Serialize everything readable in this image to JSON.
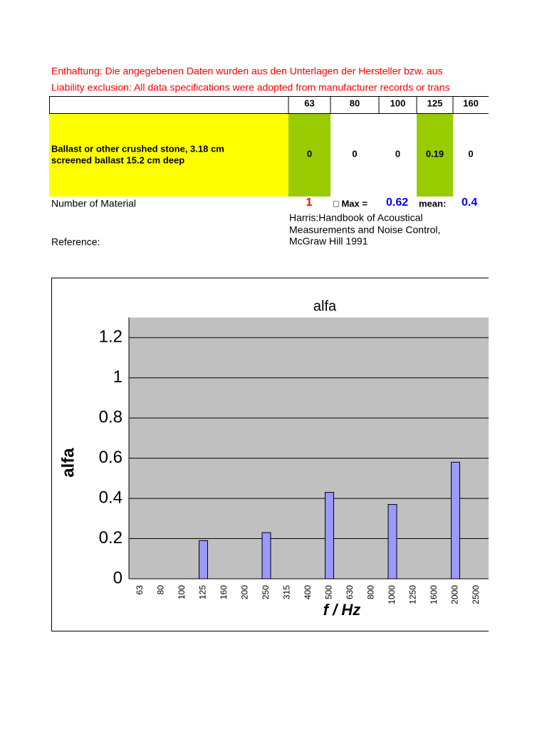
{
  "header": {
    "line_de": "Enthaftung: Die angegebenen Daten wurden aus den Unterlagen der Hersteller bzw. aus",
    "line_en": "Liability exclusion: All data specifications were adopted from manufacturer records or trans"
  },
  "table": {
    "columns": [
      "63",
      "80",
      "100",
      "125",
      "160"
    ],
    "row_label_1": "Ballast or other crushed stone, 3.18 cm",
    "row_label_2": "screened ballast 15.2 cm deep",
    "row_values": [
      "0",
      "0",
      "0",
      "0.19",
      "0"
    ]
  },
  "info": {
    "number_label": "Number of Material",
    "number": "1",
    "max_label": "□ Max =",
    "max": "0.62",
    "mean_label": "mean:",
    "mean": "0.4",
    "reference_label": "Reference:",
    "reference": [
      "Harris:Handbook of Acoustical",
      "Measurements and Noise Control,",
      "McGraw Hill 1991"
    ]
  },
  "chart_data": {
    "type": "bar",
    "title": "alfa",
    "y_label": "alfa",
    "x_label": "f / Hz",
    "categories": [
      "63",
      "80",
      "100",
      "125",
      "160",
      "200",
      "250",
      "315",
      "400",
      "500",
      "630",
      "800",
      "1000",
      "1250",
      "1600",
      "2000",
      "2500"
    ],
    "values": [
      0,
      0,
      0,
      0.19,
      0,
      0,
      0.23,
      0,
      0,
      0.43,
      0,
      0,
      0.37,
      0,
      0,
      0.58,
      0
    ],
    "color": "#9999ff",
    "ylim": [
      0,
      1.3
    ],
    "yticks": [
      0,
      0.2,
      0.4,
      0.6,
      0.8,
      1,
      1.2
    ],
    "grid": true
  }
}
